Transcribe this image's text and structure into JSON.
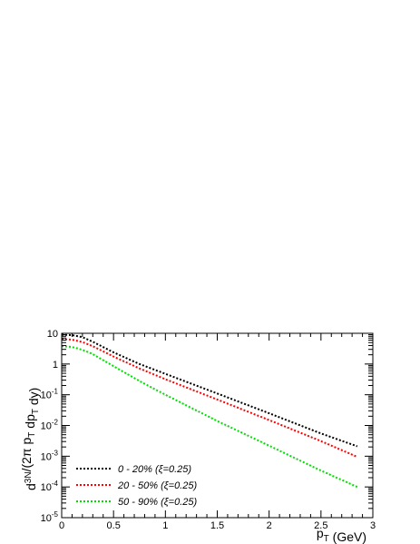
{
  "chart_data": {
    "type": "line",
    "xlabel": "p_T (GeV)",
    "ylabel": "d^3N/(2π p_T dp_T dy)",
    "xlim": [
      0,
      3
    ],
    "ylim": [
      1e-05,
      10
    ],
    "yscale": "log",
    "x_ticks": [
      0,
      0.5,
      1,
      1.5,
      2,
      2.5,
      3
    ],
    "x_tick_labels": [
      "0",
      "0.5",
      "1",
      "1.5",
      "2",
      "2.5",
      "3"
    ],
    "y_ticks": [
      1e-05,
      0.0001,
      0.001,
      0.01,
      0.1,
      1,
      10
    ],
    "y_tick_labels": [
      {
        "base": "10",
        "exp": "-5"
      },
      {
        "base": "10",
        "exp": "-4"
      },
      {
        "base": "10",
        "exp": "-3"
      },
      {
        "base": "10",
        "exp": "-2"
      },
      {
        "base": "10",
        "exp": "-1"
      },
      {
        "base": "1",
        "exp": ""
      },
      {
        "base": "10",
        "exp": ""
      }
    ],
    "legend_position": "bottom-left",
    "grid": false,
    "series": [
      {
        "name": "0 - 20%   (ξ=0.25)",
        "color": "#000000",
        "x": [
          0,
          0.1,
          0.2,
          0.3,
          0.5,
          0.75,
          1.0,
          1.5,
          2.0,
          2.5,
          2.85
        ],
        "y": [
          9.0,
          8.7,
          7.5,
          5.3,
          2.4,
          1.0,
          0.48,
          0.11,
          0.025,
          0.0055,
          0.0021
        ]
      },
      {
        "name": "20 - 50% (ξ=0.25)",
        "color": "#ff0000",
        "x": [
          0,
          0.1,
          0.2,
          0.3,
          0.5,
          0.75,
          1.0,
          1.5,
          2.0,
          2.5,
          2.85
        ],
        "y": [
          6.5,
          6.2,
          5.2,
          3.8,
          1.75,
          0.72,
          0.32,
          0.07,
          0.015,
          0.0031,
          0.00095
        ]
      },
      {
        "name": "50 - 90% (ξ=0.25)",
        "color": "#00dd00",
        "x": [
          0,
          0.1,
          0.2,
          0.3,
          0.5,
          0.75,
          1.0,
          1.5,
          2.0,
          2.5,
          2.85
        ],
        "y": [
          3.8,
          3.6,
          2.9,
          2.1,
          0.85,
          0.28,
          0.1,
          0.014,
          0.0022,
          0.00034,
          0.0001
        ]
      }
    ]
  }
}
